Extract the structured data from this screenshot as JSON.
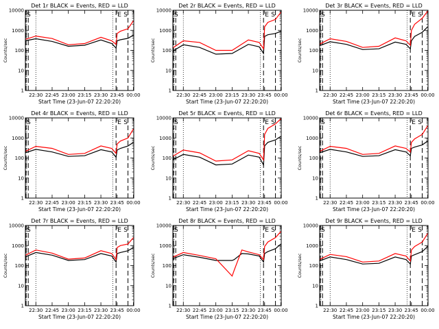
{
  "chart_data": [
    {
      "type": "line",
      "title": "Det 1r BLACK = Events, RED = LLD",
      "ylabel": "Counts/sec",
      "xlabel": "Start Time (23-Jun-07 22:20:20)",
      "yscale": "log",
      "ylim": [
        1,
        10000
      ],
      "xlim": [
        "22:20:20",
        "00:00:20"
      ],
      "x_tick_labels": [
        "22:30",
        "22:45",
        "23:00",
        "23:15",
        "23:30",
        "23:45",
        "00:00"
      ],
      "y_tick_labels": [
        "1",
        "10",
        "100",
        "1000",
        "10000"
      ],
      "markers": [
        "E",
        "S"
      ],
      "x": [
        "22:20",
        "22:30",
        "22:45",
        "23:00",
        "23:15",
        "23:30",
        "23:40",
        "23:44",
        "23:45",
        "23:48",
        "23:55",
        "00:00"
      ],
      "series": [
        {
          "name": "BLACK",
          "color": "#000000",
          "values": [
            300,
            380,
            280,
            160,
            180,
            330,
            220,
            130,
            300,
            340,
            400,
            580
          ]
        },
        {
          "name": "RED",
          "color": "#ff0000",
          "values": [
            350,
            520,
            390,
            190,
            220,
            450,
            300,
            200,
            700,
            900,
            1200,
            3000
          ]
        }
      ]
    },
    {
      "type": "line",
      "title": "Det 2r BLACK = Events, RED = LLD",
      "ylabel": "Counts/sec",
      "xlabel": "Start Time (23-Jun-07 22:20:20)",
      "yscale": "log",
      "ylim": [
        1,
        10000
      ],
      "xlim": [
        "22:20:20",
        "00:00:20"
      ],
      "x_tick_labels": [
        "22:30",
        "22:45",
        "23:00",
        "23:15",
        "23:30",
        "23:45",
        "00:00"
      ],
      "y_tick_labels": [
        "1",
        "10",
        "100",
        "1000",
        "10000"
      ],
      "markers": [
        "E",
        "S"
      ],
      "x": [
        "22:20",
        "22:30",
        "22:45",
        "23:00",
        "23:15",
        "23:30",
        "23:40",
        "23:44",
        "23:45",
        "23:48",
        "23:55",
        "00:00"
      ],
      "series": [
        {
          "name": "BLACK",
          "color": "#000000",
          "values": [
            90,
            190,
            140,
            65,
            70,
            200,
            150,
            70,
            500,
            600,
            700,
            900
          ]
        },
        {
          "name": "RED",
          "color": "#ff0000",
          "values": [
            130,
            300,
            250,
            100,
            100,
            330,
            250,
            120,
            1500,
            2500,
            3500,
            8000
          ]
        }
      ]
    },
    {
      "type": "line",
      "title": "Det 3r BLACK = Events, RED = LLD",
      "ylabel": "Counts/sec",
      "xlabel": "Start Time (23-Jun-07 22:20:20)",
      "yscale": "log",
      "ylim": [
        1,
        10000
      ],
      "xlim": [
        "22:20:20",
        "00:00:20"
      ],
      "x_tick_labels": [
        "22:30",
        "22:45",
        "23:00",
        "23:15",
        "23:30",
        "23:45",
        "00:00"
      ],
      "y_tick_labels": [
        "1",
        "10",
        "100",
        "1000",
        "10000"
      ],
      "markers": [
        "E",
        "S"
      ],
      "x": [
        "22:20",
        "22:30",
        "22:45",
        "23:00",
        "23:15",
        "23:30",
        "23:40",
        "23:44",
        "23:45",
        "23:48",
        "23:55",
        "00:00"
      ],
      "series": [
        {
          "name": "BLACK",
          "color": "#000000",
          "values": [
            170,
            270,
            200,
            110,
            120,
            260,
            200,
            120,
            300,
            500,
            800,
            1500
          ]
        },
        {
          "name": "RED",
          "color": "#ff0000",
          "values": [
            200,
            380,
            280,
            140,
            160,
            420,
            300,
            180,
            1000,
            2000,
            4000,
            9000
          ]
        }
      ]
    },
    {
      "type": "line",
      "title": "Det 4r BLACK = Events, RED = LLD",
      "ylabel": "Counts/sec",
      "xlabel": "Start Time (23-Jun-07 22:20:20)",
      "yscale": "log",
      "ylim": [
        1,
        10000
      ],
      "xlim": [
        "22:20:20",
        "00:00:20"
      ],
      "x_tick_labels": [
        "22:30",
        "22:45",
        "23:00",
        "23:15",
        "23:30",
        "23:45",
        "00:00"
      ],
      "y_tick_labels": [
        "1",
        "10",
        "100",
        "1000",
        "10000"
      ],
      "markers": [
        "E",
        "S"
      ],
      "x": [
        "22:20",
        "22:30",
        "22:45",
        "23:00",
        "23:15",
        "23:30",
        "23:40",
        "23:44",
        "23:45",
        "23:48",
        "23:55",
        "00:00"
      ],
      "series": [
        {
          "name": "BLACK",
          "color": "#000000",
          "values": [
            180,
            270,
            200,
            120,
            130,
            260,
            200,
            110,
            250,
            300,
            400,
            600
          ]
        },
        {
          "name": "RED",
          "color": "#ff0000",
          "values": [
            210,
            380,
            300,
            150,
            170,
            400,
            300,
            170,
            500,
            700,
            1000,
            2800
          ]
        }
      ]
    },
    {
      "type": "line",
      "title": "Det 5r BLACK = Events, RED = LLD",
      "ylabel": "Counts/sec",
      "xlabel": "Start Time (23-Jun-07 22:20:20)",
      "yscale": "log",
      "ylim": [
        1,
        10000
      ],
      "xlim": [
        "22:20:20",
        "00:00:20"
      ],
      "x_tick_labels": [
        "22:30",
        "22:45",
        "23:00",
        "23:15",
        "23:30",
        "23:45",
        "00:00"
      ],
      "y_tick_labels": [
        "1",
        "10",
        "100",
        "1000",
        "10000"
      ],
      "markers": [
        "E",
        "S"
      ],
      "x": [
        "22:20",
        "22:30",
        "22:45",
        "23:00",
        "23:15",
        "23:30",
        "23:40",
        "23:44",
        "23:45",
        "23:48",
        "23:55",
        "00:00"
      ],
      "series": [
        {
          "name": "BLACK",
          "color": "#000000",
          "values": [
            80,
            150,
            110,
            45,
            50,
            140,
            110,
            45,
            400,
            600,
            800,
            1200
          ]
        },
        {
          "name": "RED",
          "color": "#ff0000",
          "values": [
            120,
            250,
            180,
            70,
            80,
            230,
            170,
            80,
            1500,
            3000,
            5000,
            9000
          ]
        }
      ]
    },
    {
      "type": "line",
      "title": "Det 6r BLACK = Events, RED = LLD",
      "ylabel": "Counts/sec",
      "xlabel": "Start Time (23-Jun-07 22:20:20)",
      "yscale": "log",
      "ylim": [
        1,
        10000
      ],
      "xlim": [
        "22:20:20",
        "00:00:20"
      ],
      "x_tick_labels": [
        "22:30",
        "22:45",
        "23:00",
        "23:15",
        "23:30",
        "23:45",
        "00:00"
      ],
      "y_tick_labels": [
        "1",
        "10",
        "100",
        "1000",
        "10000"
      ],
      "markers": [
        "E",
        "S"
      ],
      "x": [
        "22:20",
        "22:30",
        "22:45",
        "23:00",
        "23:15",
        "23:30",
        "23:40",
        "23:44",
        "23:45",
        "23:48",
        "23:55",
        "00:00"
      ],
      "series": [
        {
          "name": "BLACK",
          "color": "#000000",
          "values": [
            180,
            270,
            200,
            120,
            130,
            260,
            200,
            130,
            300,
            350,
            450,
            700
          ]
        },
        {
          "name": "RED",
          "color": "#ff0000",
          "values": [
            210,
            380,
            300,
            150,
            170,
            400,
            300,
            200,
            600,
            900,
            1500,
            4000
          ]
        }
      ]
    },
    {
      "type": "line",
      "title": "Det 7r BLACK = Events, RED = LLD",
      "ylabel": "Counts/sec",
      "xlabel": "Start Time (23-Jun-07 22:20:20)",
      "yscale": "log",
      "ylim": [
        1,
        10000
      ],
      "xlim": [
        "22:20:20",
        "00:00:20"
      ],
      "x_tick_labels": [
        "22:30",
        "22:45",
        "23:00",
        "23:15",
        "23:30",
        "23:45",
        "00:00"
      ],
      "y_tick_labels": [
        "1",
        "10",
        "100",
        "1000",
        "10000"
      ],
      "markers": [
        "E",
        "S"
      ],
      "x": [
        "22:20",
        "22:30",
        "22:45",
        "23:00",
        "23:15",
        "23:30",
        "23:40",
        "23:44",
        "23:45",
        "23:48",
        "23:55",
        "00:00"
      ],
      "series": [
        {
          "name": "BLACK",
          "color": "#000000",
          "values": [
            270,
            450,
            330,
            180,
            200,
            400,
            300,
            150,
            400,
            450,
            550,
            800
          ]
        },
        {
          "name": "RED",
          "color": "#ff0000",
          "values": [
            320,
            600,
            420,
            210,
            240,
            550,
            400,
            200,
            800,
            1000,
            1200,
            2500
          ]
        }
      ]
    },
    {
      "type": "line",
      "title": "Det 8r BLACK = Events, RED = LLD",
      "ylabel": "Counts/sec",
      "xlabel": "Start Time (23-Jun-07 22:20:20)",
      "yscale": "log",
      "ylim": [
        1,
        10000
      ],
      "xlim": [
        "22:20:20",
        "00:00:20"
      ],
      "x_tick_labels": [
        "22:30",
        "22:45",
        "23:00",
        "23:15",
        "23:30",
        "23:45",
        "00:00"
      ],
      "y_tick_labels": [
        "1",
        "10",
        "100",
        "1000",
        "10000"
      ],
      "markers": [
        "E",
        "S"
      ],
      "x": [
        "22:20",
        "22:30",
        "22:45",
        "23:00",
        "23:15",
        "23:17",
        "23:24",
        "23:30",
        "23:40",
        "23:44",
        "23:45",
        "23:48",
        "23:55",
        "00:00"
      ],
      "series": [
        {
          "name": "BLACK",
          "color": "#000000",
          "values": [
            220,
            350,
            260,
            180,
            180,
            200,
            400,
            380,
            300,
            150,
            400,
            500,
            700,
            1200
          ]
        },
        {
          "name": "RED",
          "color": "#ff0000",
          "values": [
            260,
            450,
            320,
            220,
            30,
            60,
            600,
            480,
            350,
            200,
            900,
            1500,
            2500,
            5000
          ]
        }
      ]
    },
    {
      "type": "line",
      "title": "Det 9r BLACK = Events, RED = LLD",
      "ylabel": "Counts/sec",
      "xlabel": "Start Time (23-Jun-07 22:20:20)",
      "yscale": "log",
      "ylim": [
        1,
        10000
      ],
      "xlim": [
        "22:20:20",
        "00:00:20"
      ],
      "x_tick_labels": [
        "22:30",
        "22:45",
        "23:00",
        "23:15",
        "23:30",
        "23:45",
        "00:00"
      ],
      "y_tick_labels": [
        "1",
        "10",
        "100",
        "1000",
        "10000"
      ],
      "markers": [
        "E",
        "S"
      ],
      "x": [
        "22:20",
        "22:30",
        "22:45",
        "23:00",
        "23:15",
        "23:30",
        "23:40",
        "23:44",
        "23:45",
        "23:48",
        "23:55",
        "00:00"
      ],
      "series": [
        {
          "name": "BLACK",
          "color": "#000000",
          "values": [
            170,
            270,
            200,
            120,
            130,
            270,
            200,
            120,
            300,
            350,
            500,
            900
          ]
        },
        {
          "name": "RED",
          "color": "#ff0000",
          "values": [
            200,
            360,
            280,
            150,
            170,
            400,
            300,
            170,
            600,
            900,
            1500,
            4000
          ]
        }
      ]
    }
  ]
}
